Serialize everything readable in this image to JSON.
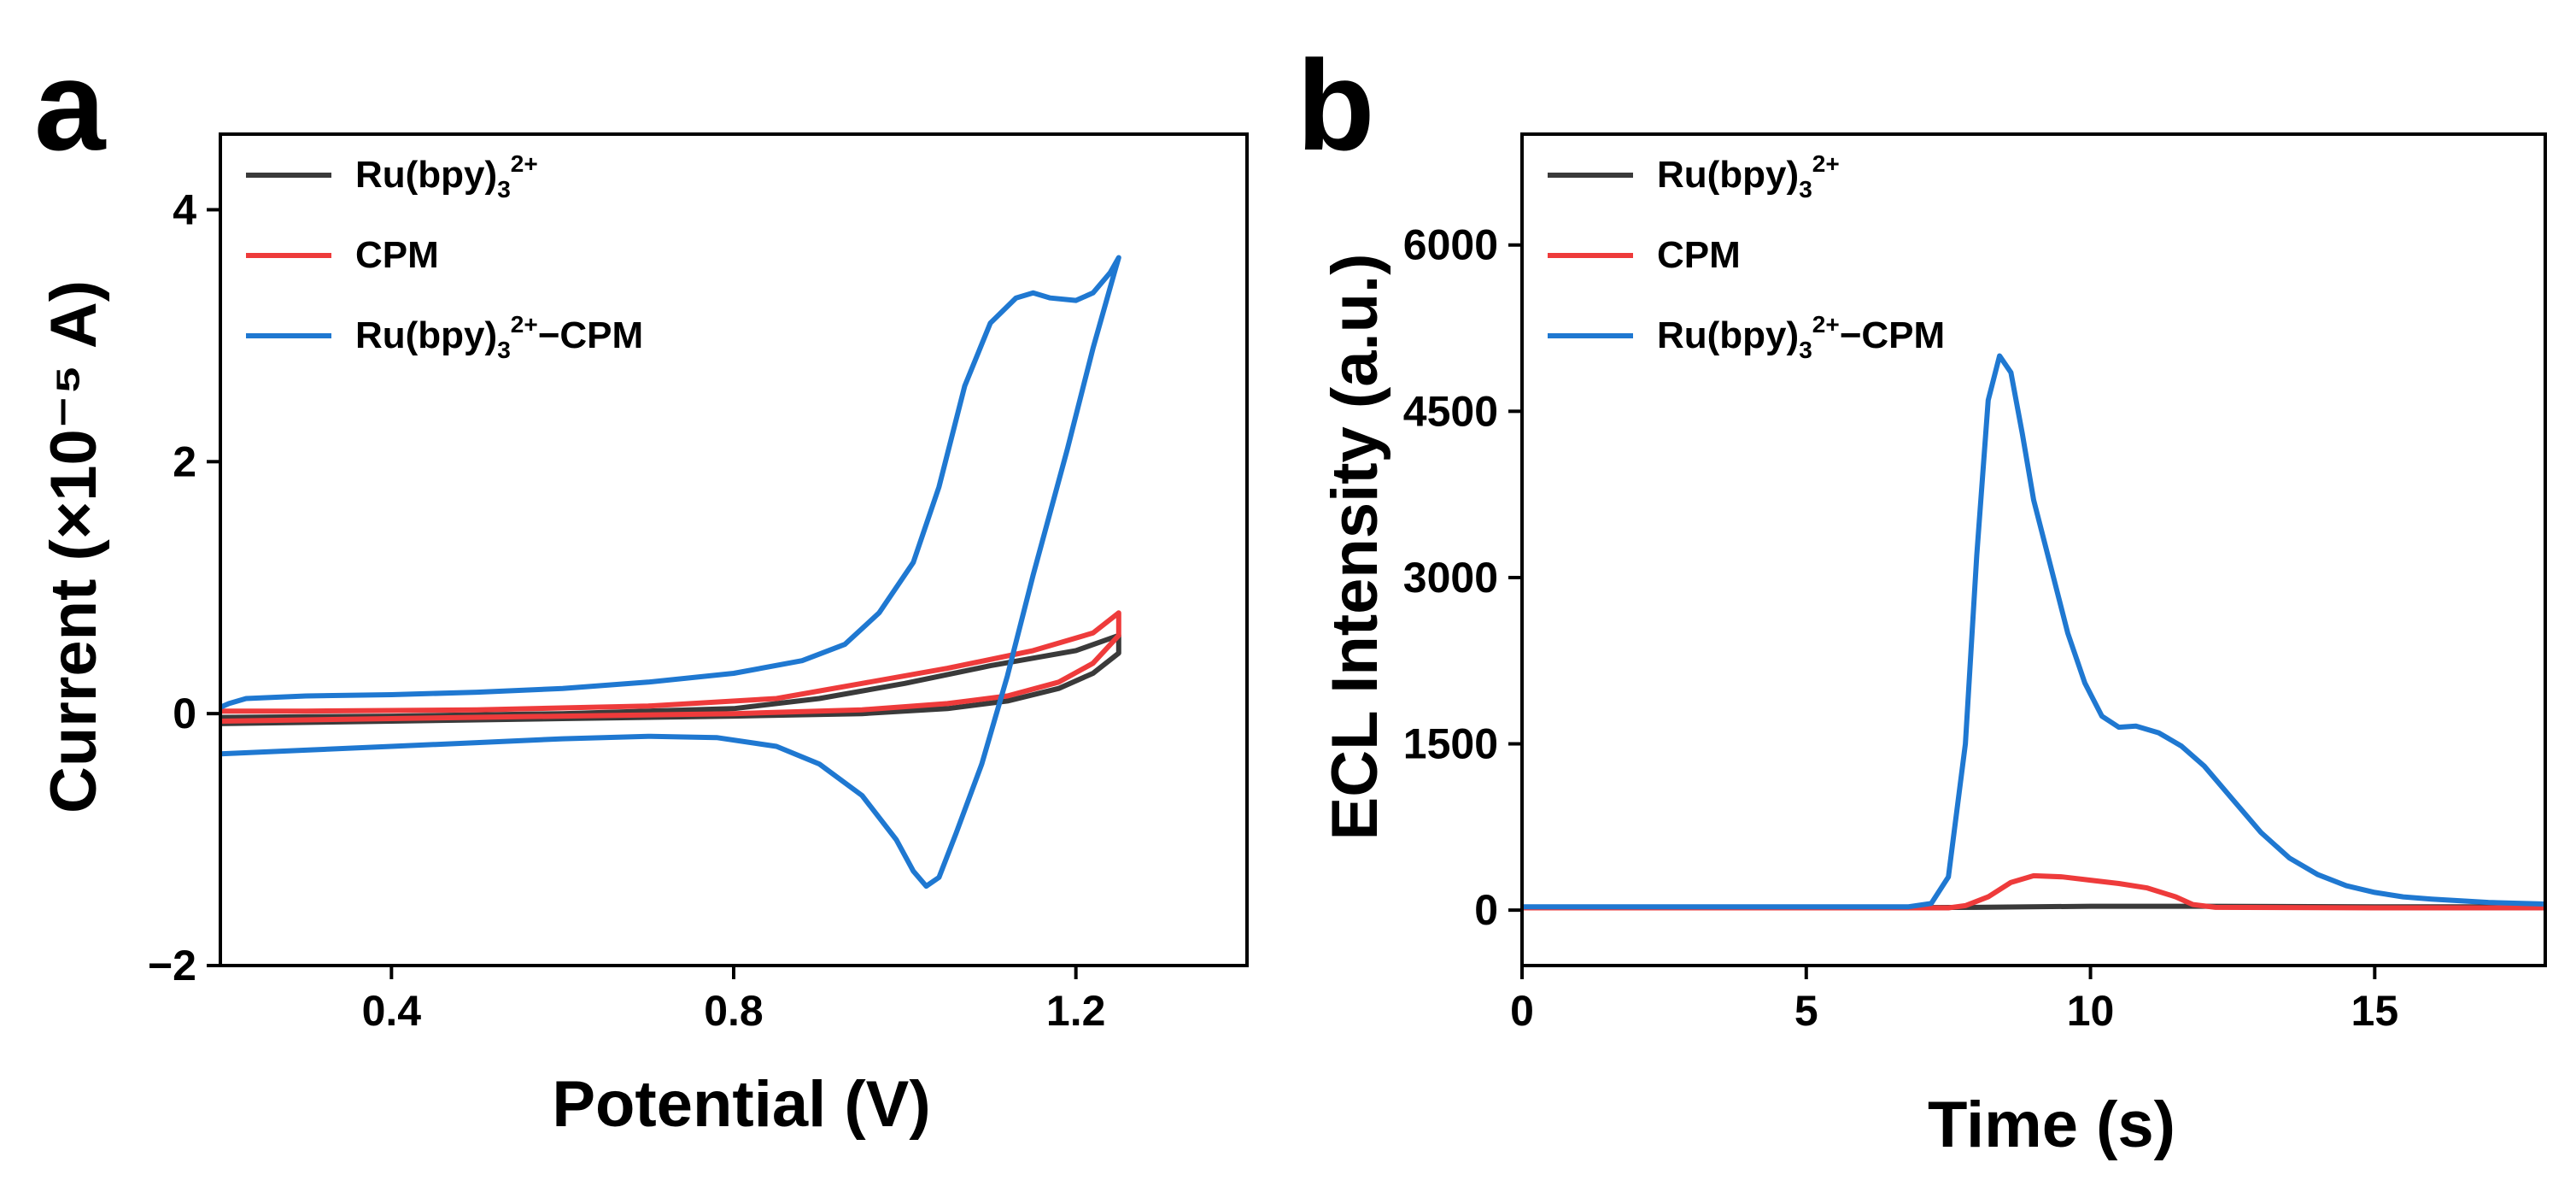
{
  "colors": {
    "black": "#3a3a3a",
    "red": "#ee3b3b",
    "blue": "#1f78d1"
  },
  "chart_data": [
    {
      "panel_label": "a",
      "type": "line",
      "xlabel": "Potential (V)",
      "ylabel": "Current (×10⁻⁵ A)",
      "xlim": [
        0.2,
        1.4
      ],
      "ylim": [
        -2.0,
        4.6
      ],
      "xticks": [
        0.4,
        0.8,
        1.2
      ],
      "xtick_labels": [
        "0.4",
        "0.8",
        "1.2"
      ],
      "yticks": [
        -2,
        0,
        2,
        4
      ],
      "ytick_labels": [
        "−2",
        "0",
        "2",
        "4"
      ],
      "legend_position": "top-left",
      "series": [
        {
          "name": "Ru(bpy)₃²⁺",
          "legend": {
            "base": "Ru(bpy)",
            "sub": "3",
            "sup": "2+",
            "suffix": ""
          },
          "color": "#3a3a3a",
          "points": [
            [
              0.2,
              -0.08
            ],
            [
              0.4,
              -0.06
            ],
            [
              0.6,
              -0.04
            ],
            [
              0.8,
              -0.02
            ],
            [
              0.95,
              0.0
            ],
            [
              1.05,
              0.04
            ],
            [
              1.12,
              0.1
            ],
            [
              1.18,
              0.2
            ],
            [
              1.22,
              0.32
            ],
            [
              1.25,
              0.48
            ],
            [
              1.25,
              0.62
            ],
            [
              1.2,
              0.5
            ],
            [
              1.1,
              0.38
            ],
            [
              1.0,
              0.24
            ],
            [
              0.9,
              0.12
            ],
            [
              0.8,
              0.04
            ],
            [
              0.6,
              0.0
            ],
            [
              0.4,
              -0.02
            ],
            [
              0.2,
              -0.03
            ]
          ]
        },
        {
          "name": "CPM",
          "legend": {
            "base": "CPM",
            "sub": "",
            "sup": "",
            "suffix": ""
          },
          "color": "#ee3b3b",
          "points": [
            [
              0.2,
              -0.06
            ],
            [
              0.4,
              -0.04
            ],
            [
              0.6,
              -0.02
            ],
            [
              0.8,
              0.0
            ],
            [
              0.95,
              0.03
            ],
            [
              1.05,
              0.08
            ],
            [
              1.12,
              0.14
            ],
            [
              1.18,
              0.25
            ],
            [
              1.22,
              0.4
            ],
            [
              1.25,
              0.62
            ],
            [
              1.25,
              0.8
            ],
            [
              1.22,
              0.64
            ],
            [
              1.15,
              0.5
            ],
            [
              1.05,
              0.36
            ],
            [
              0.95,
              0.24
            ],
            [
              0.85,
              0.12
            ],
            [
              0.7,
              0.06
            ],
            [
              0.5,
              0.03
            ],
            [
              0.3,
              0.02
            ],
            [
              0.2,
              0.02
            ]
          ]
        },
        {
          "name": "Ru(bpy)₃²⁺−CPM",
          "legend": {
            "base": "Ru(bpy)",
            "sub": "3",
            "sup": "2+",
            "suffix": "−CPM"
          },
          "color": "#1f78d1",
          "points": [
            [
              0.2,
              -0.32
            ],
            [
              0.3,
              -0.29
            ],
            [
              0.4,
              -0.26
            ],
            [
              0.5,
              -0.23
            ],
            [
              0.6,
              -0.2
            ],
            [
              0.7,
              -0.18
            ],
            [
              0.78,
              -0.19
            ],
            [
              0.85,
              -0.26
            ],
            [
              0.9,
              -0.4
            ],
            [
              0.95,
              -0.65
            ],
            [
              0.99,
              -1.0
            ],
            [
              1.01,
              -1.25
            ],
            [
              1.025,
              -1.37
            ],
            [
              1.04,
              -1.3
            ],
            [
              1.06,
              -0.95
            ],
            [
              1.09,
              -0.4
            ],
            [
              1.12,
              0.3
            ],
            [
              1.15,
              1.1
            ],
            [
              1.19,
              2.1
            ],
            [
              1.22,
              2.9
            ],
            [
              1.245,
              3.5
            ],
            [
              1.25,
              3.62
            ],
            [
              1.24,
              3.5
            ],
            [
              1.22,
              3.34
            ],
            [
              1.2,
              3.28
            ],
            [
              1.17,
              3.3
            ],
            [
              1.15,
              3.34
            ],
            [
              1.13,
              3.3
            ],
            [
              1.1,
              3.1
            ],
            [
              1.07,
              2.6
            ],
            [
              1.04,
              1.8
            ],
            [
              1.01,
              1.2
            ],
            [
              0.97,
              0.8
            ],
            [
              0.93,
              0.55
            ],
            [
              0.88,
              0.42
            ],
            [
              0.8,
              0.32
            ],
            [
              0.7,
              0.25
            ],
            [
              0.6,
              0.2
            ],
            [
              0.5,
              0.17
            ],
            [
              0.4,
              0.15
            ],
            [
              0.3,
              0.14
            ],
            [
              0.23,
              0.12
            ],
            [
              0.21,
              0.08
            ],
            [
              0.2,
              0.05
            ]
          ]
        }
      ]
    },
    {
      "panel_label": "b",
      "type": "line",
      "xlabel": "Time (s)",
      "ylabel": "ECL Intensity (a.u.)",
      "xlim": [
        0,
        18
      ],
      "ylim": [
        -500,
        7000
      ],
      "xticks": [
        0,
        5,
        10,
        15
      ],
      "xtick_labels": [
        "0",
        "5",
        "10",
        "15"
      ],
      "yticks": [
        0,
        1500,
        3000,
        4500,
        6000
      ],
      "ytick_labels": [
        "0",
        "1500",
        "3000",
        "4500",
        "6000"
      ],
      "legend_position": "top-left",
      "series": [
        {
          "name": "Ru(bpy)₃²⁺",
          "legend": {
            "base": "Ru(bpy)",
            "sub": "3",
            "sup": "2+",
            "suffix": ""
          },
          "color": "#3a3a3a",
          "points": [
            [
              0,
              20
            ],
            [
              5,
              20
            ],
            [
              8,
              25
            ],
            [
              10,
              35
            ],
            [
              12,
              35
            ],
            [
              15,
              30
            ],
            [
              18,
              30
            ]
          ]
        },
        {
          "name": "CPM",
          "legend": {
            "base": "CPM",
            "sub": "",
            "sup": "",
            "suffix": ""
          },
          "color": "#ee3b3b",
          "points": [
            [
              0,
              20
            ],
            [
              7.5,
              20
            ],
            [
              7.8,
              40
            ],
            [
              8.2,
              120
            ],
            [
              8.6,
              250
            ],
            [
              9.0,
              310
            ],
            [
              9.5,
              300
            ],
            [
              10.0,
              270
            ],
            [
              10.5,
              240
            ],
            [
              11.0,
              200
            ],
            [
              11.5,
              120
            ],
            [
              11.8,
              50
            ],
            [
              12.2,
              25
            ],
            [
              15,
              20
            ],
            [
              18,
              20
            ]
          ]
        },
        {
          "name": "Ru(bpy)₃²⁺−CPM",
          "legend": {
            "base": "Ru(bpy)",
            "sub": "3",
            "sup": "2+",
            "suffix": "−CPM"
          },
          "color": "#1f78d1",
          "points": [
            [
              0,
              30
            ],
            [
              4,
              30
            ],
            [
              6.8,
              30
            ],
            [
              7.2,
              60
            ],
            [
              7.5,
              300
            ],
            [
              7.8,
              1500
            ],
            [
              8.0,
              3200
            ],
            [
              8.2,
              4600
            ],
            [
              8.4,
              5000
            ],
            [
              8.6,
              4850
            ],
            [
              8.8,
              4300
            ],
            [
              9.0,
              3700
            ],
            [
              9.3,
              3100
            ],
            [
              9.6,
              2500
            ],
            [
              9.9,
              2050
            ],
            [
              10.2,
              1750
            ],
            [
              10.5,
              1650
            ],
            [
              10.8,
              1660
            ],
            [
              11.2,
              1600
            ],
            [
              11.6,
              1480
            ],
            [
              12.0,
              1300
            ],
            [
              12.5,
              1000
            ],
            [
              13.0,
              700
            ],
            [
              13.5,
              470
            ],
            [
              14.0,
              320
            ],
            [
              14.5,
              220
            ],
            [
              15.0,
              160
            ],
            [
              15.5,
              120
            ],
            [
              16.0,
              100
            ],
            [
              17.0,
              70
            ],
            [
              18.0,
              55
            ]
          ]
        }
      ]
    }
  ]
}
